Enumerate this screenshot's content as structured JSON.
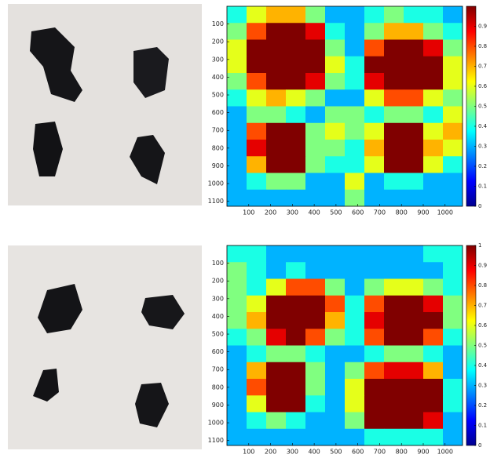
{
  "chart_data": [
    {
      "type": "heatmap",
      "colormap": "jet",
      "xbins": [
        0,
        90,
        180,
        270,
        360,
        450,
        540,
        630,
        720,
        810,
        900,
        990,
        1080
      ],
      "ybins": [
        0,
        94,
        188,
        282,
        376,
        470,
        564,
        658,
        752,
        846,
        940,
        1034,
        1128
      ],
      "xlim": [
        0,
        1080
      ],
      "ylim": [
        0,
        1128
      ],
      "xticks": [
        100,
        200,
        300,
        400,
        500,
        600,
        700,
        800,
        900,
        1000
      ],
      "yticks": [
        100,
        200,
        300,
        400,
        500,
        600,
        700,
        800,
        900,
        1000,
        1100
      ],
      "zlim": [
        0,
        1
      ],
      "zticks": [
        0,
        0.1,
        0.2,
        0.3,
        0.4,
        0.5,
        0.6,
        0.7,
        0.8,
        0.9
      ],
      "values": [
        [
          0.4,
          0.6,
          0.7,
          0.7,
          0.5,
          0.3,
          0.3,
          0.4,
          0.5,
          0.4,
          0.4,
          0.3
        ],
        [
          0.5,
          0.8,
          1,
          1,
          0.9,
          0.4,
          0.3,
          0.5,
          0.7,
          0.7,
          0.5,
          0.4
        ],
        [
          0.6,
          1,
          1,
          1,
          1,
          0.5,
          0.3,
          0.8,
          1,
          1,
          0.9,
          0.5
        ],
        [
          0.6,
          1,
          1,
          1,
          1,
          0.6,
          0.4,
          1,
          1,
          1,
          1,
          0.6
        ],
        [
          0.5,
          0.8,
          1,
          1,
          0.9,
          0.5,
          0.4,
          0.9,
          1,
          1,
          1,
          0.6
        ],
        [
          0.4,
          0.6,
          0.7,
          0.6,
          0.5,
          0.3,
          0.3,
          0.6,
          0.8,
          0.8,
          0.6,
          0.5
        ],
        [
          0.3,
          0.5,
          0.5,
          0.4,
          0.3,
          0.5,
          0.5,
          0.4,
          0.5,
          0.5,
          0.4,
          0.6
        ],
        [
          0.3,
          0.8,
          1,
          1,
          0.5,
          0.6,
          0.5,
          0.6,
          1,
          1,
          0.6,
          0.7
        ],
        [
          0.3,
          0.9,
          1,
          1,
          0.5,
          0.5,
          0.4,
          0.7,
          1,
          1,
          0.7,
          0.6
        ],
        [
          0.3,
          0.7,
          1,
          1,
          0.5,
          0.4,
          0.4,
          0.6,
          1,
          1,
          0.6,
          0.4
        ],
        [
          0.3,
          0.4,
          0.5,
          0.5,
          0.3,
          0.3,
          0.6,
          0.3,
          0.4,
          0.4,
          0.3,
          0.3
        ],
        [
          0.3,
          0.3,
          0.3,
          0.3,
          0.3,
          0.3,
          0.5,
          0.3,
          0.3,
          0.3,
          0.3,
          0.3
        ]
      ]
    },
    {
      "type": "heatmap",
      "colormap": "jet",
      "xbins": [
        0,
        90,
        180,
        270,
        360,
        450,
        540,
        630,
        720,
        810,
        900,
        990,
        1080
      ],
      "ybins": [
        0,
        94,
        188,
        282,
        376,
        470,
        564,
        658,
        752,
        846,
        940,
        1034,
        1128
      ],
      "xlim": [
        0,
        1080
      ],
      "ylim": [
        0,
        1128
      ],
      "xticks": [
        100,
        200,
        300,
        400,
        500,
        600,
        700,
        800,
        900,
        1000
      ],
      "yticks": [
        100,
        200,
        300,
        400,
        500,
        600,
        700,
        800,
        900,
        1000,
        1100
      ],
      "zlim": [
        0,
        1
      ],
      "zticks": [
        0,
        0.1,
        0.2,
        0.3,
        0.4,
        0.5,
        0.6,
        0.7,
        0.8,
        0.9,
        1
      ],
      "values": [
        [
          0.4,
          0.4,
          0.3,
          0.3,
          0.3,
          0.3,
          0.3,
          0.3,
          0.3,
          0.3,
          0.4,
          0.4
        ],
        [
          0.5,
          0.4,
          0.3,
          0.4,
          0.3,
          0.3,
          0.3,
          0.3,
          0.3,
          0.3,
          0.3,
          0.4
        ],
        [
          0.5,
          0.4,
          0.6,
          0.8,
          0.8,
          0.5,
          0.3,
          0.5,
          0.6,
          0.6,
          0.5,
          0.4
        ],
        [
          0.5,
          0.6,
          1,
          1,
          1,
          0.8,
          0.4,
          0.8,
          1,
          1,
          0.9,
          0.5
        ],
        [
          0.5,
          0.7,
          1,
          1,
          1,
          0.7,
          0.4,
          0.9,
          1,
          1,
          1,
          0.5
        ],
        [
          0.4,
          0.5,
          0.9,
          1,
          0.8,
          0.5,
          0.4,
          0.8,
          1,
          1,
          0.8,
          0.4
        ],
        [
          0.3,
          0.4,
          0.5,
          0.5,
          0.4,
          0.3,
          0.3,
          0.4,
          0.5,
          0.5,
          0.4,
          0.3
        ],
        [
          0.3,
          0.7,
          1,
          1,
          0.5,
          0.3,
          0.5,
          0.8,
          0.9,
          0.9,
          0.7,
          0.3
        ],
        [
          0.3,
          0.8,
          1,
          1,
          0.5,
          0.3,
          0.6,
          1,
          1,
          1,
          1,
          0.4
        ],
        [
          0.3,
          0.6,
          1,
          1,
          0.4,
          0.3,
          0.6,
          1,
          1,
          1,
          1,
          0.4
        ],
        [
          0.3,
          0.4,
          0.5,
          0.4,
          0.3,
          0.3,
          0.5,
          1,
          1,
          1,
          0.9,
          0.3
        ],
        [
          0.3,
          0.3,
          0.3,
          0.3,
          0.3,
          0.3,
          0.3,
          0.4,
          0.4,
          0.4,
          0.4,
          0.3
        ]
      ]
    }
  ]
}
